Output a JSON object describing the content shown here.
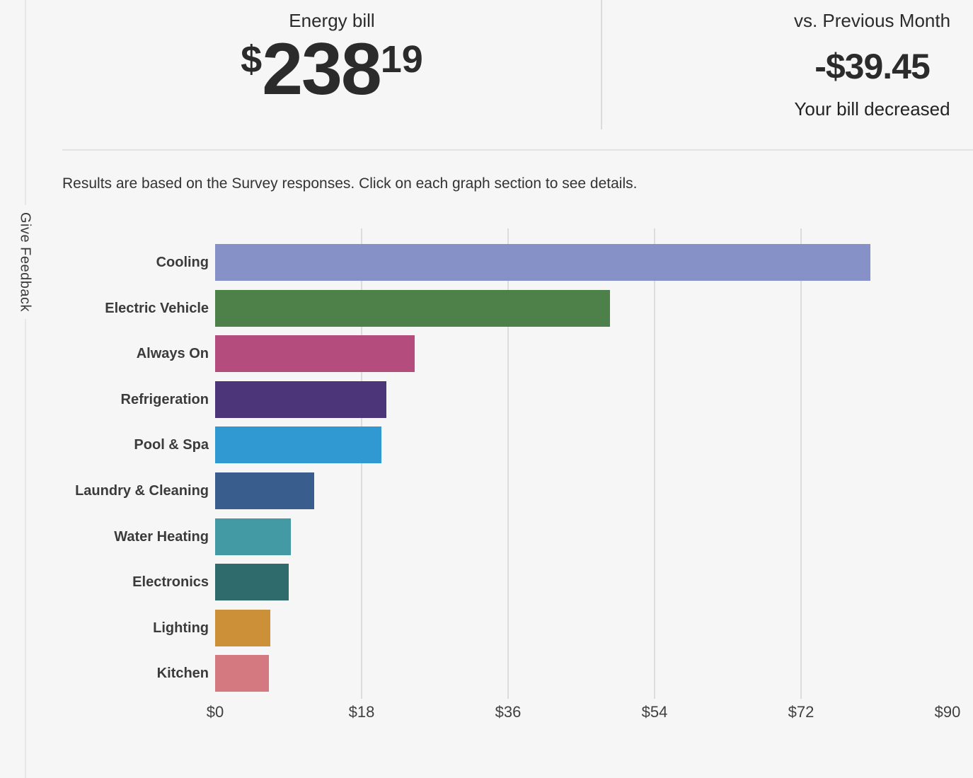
{
  "page": {
    "background": "#f6f6f6"
  },
  "feedback_tab": {
    "label": "Give Feedback"
  },
  "header": {
    "bill": {
      "title": "Energy bill",
      "currency_symbol": "$",
      "amount_dollars": "238",
      "amount_cents": "19"
    },
    "comparison": {
      "title": "vs. Previous Month",
      "delta": "-$39.45",
      "subtitle": "Your bill decreased"
    }
  },
  "note": "Results are based on the Survey responses. Click on each graph section to see details.",
  "chart_data": {
    "type": "bar",
    "orientation": "horizontal",
    "title": "",
    "xlabel": "",
    "ylabel": "",
    "unit": "$",
    "xlim": [
      0,
      90
    ],
    "grid": true,
    "legend": false,
    "x_tick_labels": [
      "$0",
      "$18",
      "$36",
      "$54",
      "$72",
      "$90"
    ],
    "x_tick_values": [
      0,
      18,
      36,
      54,
      72,
      90
    ],
    "gridline_values": [
      18,
      36,
      54,
      72
    ],
    "categories": [
      "Cooling",
      "Electric Vehicle",
      "Always On",
      "Refrigeration",
      "Pool & Spa",
      "Laundry & Cleaning",
      "Water Heating",
      "Electronics",
      "Lighting",
      "Kitchen"
    ],
    "values": [
      80.5,
      48.5,
      24.5,
      21.0,
      20.4,
      12.2,
      9.3,
      9.0,
      6.8,
      6.6
    ],
    "colors": [
      "#8691c8",
      "#4e8049",
      "#b44d7d",
      "#4c3578",
      "#3199d2",
      "#395e8d",
      "#449aa4",
      "#2f6b6d",
      "#cb9038",
      "#d4797f"
    ]
  }
}
